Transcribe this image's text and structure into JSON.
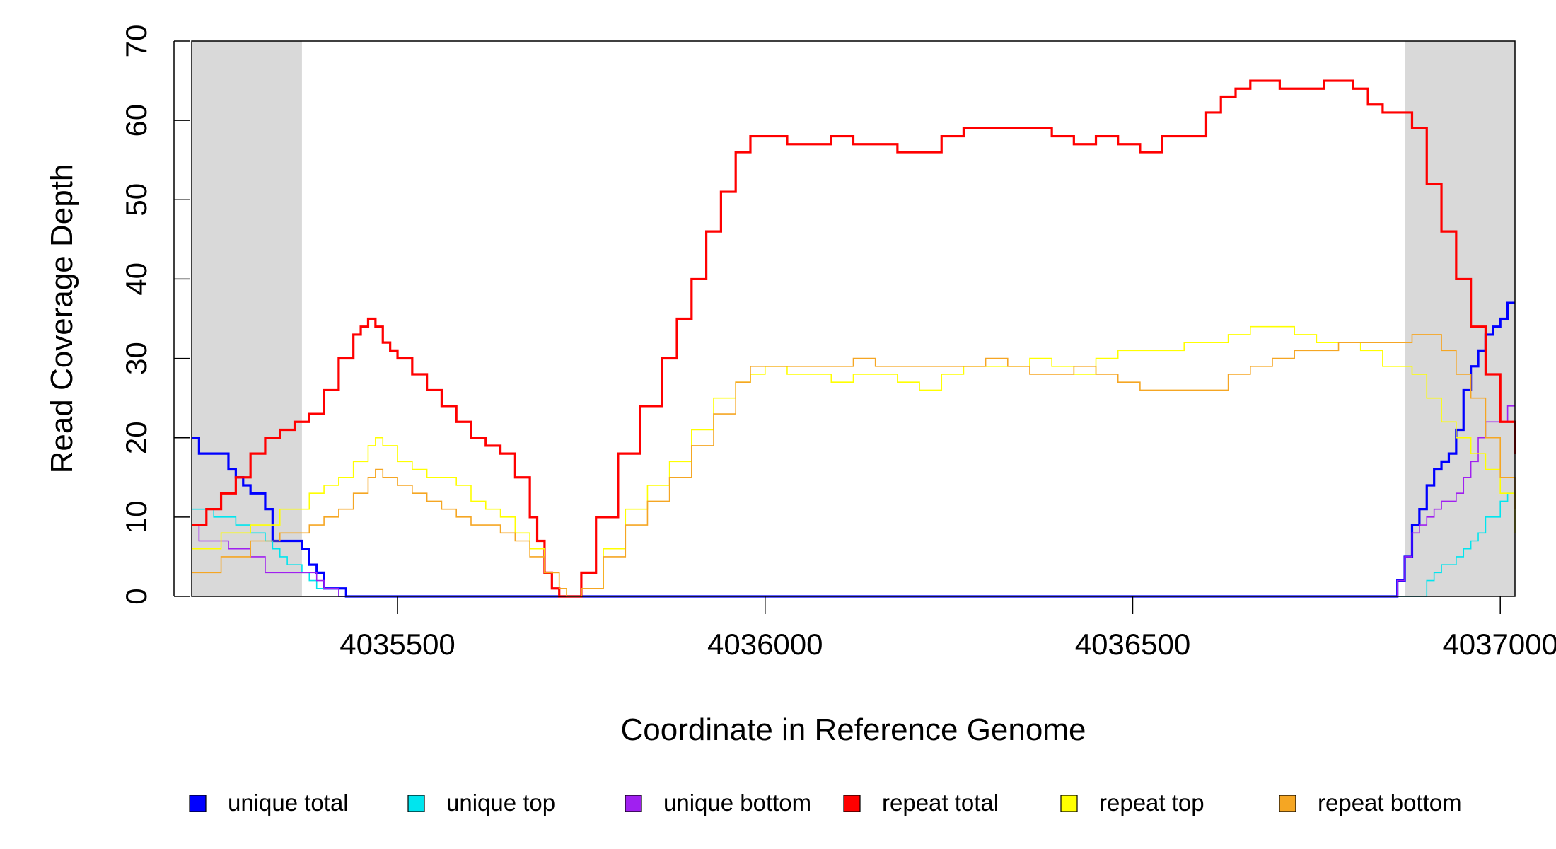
{
  "chart_data": {
    "type": "line",
    "title": "",
    "xlabel": "Coordinate in Reference Genome",
    "ylabel": "Read Coverage Depth",
    "xlim": [
      4035220,
      4037020
    ],
    "ylim": [
      0,
      70
    ],
    "grid": false,
    "legend_position": "bottom",
    "shaded_regions": [
      [
        4035220,
        4035370
      ],
      [
        4036870,
        4037020
      ]
    ],
    "shade_color": "#d9d9d9",
    "x_ticks": [
      {
        "value": 4035500,
        "label": "4035500"
      },
      {
        "value": 4036000,
        "label": "4036000"
      },
      {
        "value": 4036500,
        "label": "4036500"
      },
      {
        "value": 4037000,
        "label": "4037000"
      }
    ],
    "y_ticks": [
      {
        "value": 0,
        "label": "0"
      },
      {
        "value": 10,
        "label": "10"
      },
      {
        "value": 20,
        "label": "20"
      },
      {
        "value": 30,
        "label": "30"
      },
      {
        "value": 40,
        "label": "40"
      },
      {
        "value": 50,
        "label": "50"
      },
      {
        "value": 60,
        "label": "60"
      },
      {
        "value": 70,
        "label": "70"
      }
    ],
    "series": [
      {
        "name": "unique total",
        "color": "#0000ff",
        "width": "thick",
        "x": [
          4035220,
          4035230,
          4035260,
          4035270,
          4035280,
          4035290,
          4035300,
          4035310,
          4035320,
          4035330,
          4035350,
          4035360,
          4035370,
          4035380,
          4035390,
          4035400,
          4035410,
          4035430,
          4035440,
          4035500,
          4035740,
          4035780,
          4036000,
          4036500,
          4036850,
          4036860,
          4036870,
          4036880,
          4036890,
          4036900,
          4036910,
          4036920,
          4036930,
          4036940,
          4036950,
          4036960,
          4036970,
          4036980,
          4036990,
          4037000,
          4037010,
          4037020
        ],
        "y": [
          20,
          18,
          18,
          16,
          15,
          14,
          13,
          13,
          11,
          7,
          7,
          7,
          6,
          4,
          3,
          1,
          1,
          0,
          0,
          0,
          0,
          0,
          0,
          0,
          0,
          2,
          5,
          9,
          11,
          14,
          16,
          17,
          18,
          21,
          26,
          29,
          31,
          33,
          34,
          35,
          37,
          37
        ]
      },
      {
        "name": "unique top",
        "color": "#00e5ee",
        "width": "thin",
        "x": [
          4035220,
          4035240,
          4035250,
          4035270,
          4035280,
          4035290,
          4035300,
          4035310,
          4035320,
          4035330,
          4035340,
          4035350,
          4035360,
          4035370,
          4035380,
          4035390,
          4035400,
          4035420,
          4035500,
          4036000,
          4036500,
          4036860,
          4036870,
          4036880,
          4036890,
          4036900,
          4036910,
          4036920,
          4036930,
          4036940,
          4036950,
          4036960,
          4036970,
          4036980,
          4036990,
          4037000,
          4037010,
          4037020
        ],
        "y": [
          11,
          11,
          10,
          10,
          9,
          9,
          8,
          8,
          7,
          6,
          5,
          4,
          4,
          3,
          2,
          1,
          1,
          0,
          0,
          0,
          0,
          0,
          0,
          0,
          0,
          2,
          3,
          4,
          4,
          5,
          6,
          7,
          8,
          10,
          10,
          12,
          13,
          13
        ]
      },
      {
        "name": "unique bottom",
        "color": "#a020f0",
        "width": "thin",
        "x": [
          4035220,
          4035230,
          4035260,
          4035270,
          4035280,
          4035300,
          4035310,
          4035320,
          4035340,
          4035360,
          4035380,
          4035390,
          4035400,
          4035420,
          4035500,
          4036000,
          4036500,
          4036850,
          4036860,
          4036870,
          4036880,
          4036890,
          4036900,
          4036910,
          4036920,
          4036930,
          4036940,
          4036950,
          4036960,
          4036970,
          4036980,
          4036990,
          4037000,
          4037010,
          4037020
        ],
        "y": [
          9,
          7,
          7,
          6,
          6,
          5,
          5,
          3,
          3,
          3,
          3,
          2,
          1,
          0,
          0,
          0,
          0,
          0,
          2,
          5,
          8,
          9,
          10,
          11,
          12,
          12,
          13,
          15,
          17,
          20,
          22,
          22,
          22,
          24,
          24
        ]
      },
      {
        "name": "repeat total",
        "color": "#ff0000",
        "width": "thick",
        "x": [
          4035220,
          4035240,
          4035260,
          4035280,
          4035300,
          4035320,
          4035340,
          4035360,
          4035380,
          4035400,
          4035420,
          4035440,
          4035450,
          4035460,
          4035470,
          4035480,
          4035490,
          4035500,
          4035520,
          4035540,
          4035560,
          4035580,
          4035600,
          4035620,
          4035640,
          4035660,
          4035680,
          4035690,
          4035700,
          4035710,
          4035720,
          4035730,
          4035740,
          4035750,
          4035770,
          4035800,
          4035830,
          4035860,
          4035880,
          4035900,
          4035920,
          4035940,
          4035960,
          4035980,
          4036000,
          4036030,
          4036060,
          4036090,
          4036120,
          4036150,
          4036180,
          4036210,
          4036240,
          4036270,
          4036300,
          4036330,
          4036360,
          4036390,
          4036420,
          4036450,
          4036480,
          4036510,
          4036540,
          4036570,
          4036600,
          4036620,
          4036640,
          4036660,
          4036680,
          4036700,
          4036720,
          4036740,
          4036760,
          4036780,
          4036800,
          4036820,
          4036840,
          4036860,
          4036880,
          4036900,
          4036920,
          4036940,
          4036960,
          4036980,
          4037000,
          4037020
        ],
        "y": [
          9,
          11,
          13,
          15,
          18,
          20,
          21,
          22,
          23,
          26,
          30,
          33,
          34,
          35,
          34,
          32,
          31,
          30,
          28,
          26,
          24,
          22,
          20,
          19,
          18,
          15,
          10,
          7,
          3,
          1,
          0,
          0,
          0,
          3,
          10,
          18,
          24,
          30,
          35,
          40,
          46,
          51,
          56,
          58,
          58,
          57,
          57,
          58,
          57,
          57,
          56,
          56,
          58,
          59,
          59,
          59,
          59,
          58,
          57,
          58,
          57,
          56,
          58,
          58,
          61,
          63,
          64,
          65,
          65,
          64,
          64,
          64,
          65,
          65,
          64,
          62,
          61,
          61,
          59,
          52,
          46,
          40,
          34,
          28,
          22,
          18
        ]
      },
      {
        "name": "repeat top",
        "color": "#ffff00",
        "width": "thin",
        "x": [
          4035220,
          4035260,
          4035300,
          4035340,
          4035380,
          4035400,
          4035420,
          4035440,
          4035460,
          4035470,
          4035480,
          4035500,
          4035520,
          4035540,
          4035560,
          4035580,
          4035600,
          4035620,
          4035640,
          4035660,
          4035680,
          4035700,
          4035720,
          4035730,
          4035740,
          4035750,
          4035780,
          4035810,
          4035840,
          4035870,
          4035900,
          4035930,
          4035960,
          4035980,
          4036000,
          4036030,
          4036060,
          4036090,
          4036120,
          4036150,
          4036180,
          4036210,
          4036240,
          4036270,
          4036300,
          4036330,
          4036360,
          4036390,
          4036420,
          4036450,
          4036480,
          4036510,
          4036540,
          4036570,
          4036600,
          4036630,
          4036660,
          4036690,
          4036720,
          4036750,
          4036780,
          4036810,
          4036840,
          4036860,
          4036880,
          4036900,
          4036920,
          4036940,
          4036960,
          4036980,
          4037000,
          4037020
        ],
        "y": [
          6,
          8,
          9,
          11,
          13,
          14,
          15,
          17,
          19,
          20,
          19,
          17,
          16,
          15,
          15,
          14,
          12,
          11,
          10,
          8,
          6,
          3,
          1,
          0,
          0,
          1,
          6,
          11,
          14,
          17,
          21,
          25,
          27,
          28,
          29,
          28,
          28,
          27,
          28,
          28,
          27,
          26,
          28,
          29,
          29,
          29,
          30,
          29,
          28,
          30,
          31,
          31,
          31,
          32,
          32,
          33,
          34,
          34,
          33,
          32,
          32,
          31,
          29,
          29,
          28,
          25,
          22,
          20,
          18,
          16,
          13,
          8
        ]
      },
      {
        "name": "repeat bottom",
        "color": "#f5a623",
        "width": "thin",
        "x": [
          4035220,
          4035260,
          4035300,
          4035340,
          4035380,
          4035400,
          4035420,
          4035440,
          4035460,
          4035470,
          4035480,
          4035500,
          4035520,
          4035540,
          4035560,
          4035580,
          4035600,
          4035620,
          4035640,
          4035660,
          4035680,
          4035700,
          4035720,
          4035730,
          4035740,
          4035750,
          4035780,
          4035810,
          4035840,
          4035870,
          4035900,
          4035930,
          4035960,
          4035980,
          4036000,
          4036030,
          4036060,
          4036090,
          4036120,
          4036150,
          4036180,
          4036210,
          4036240,
          4036270,
          4036300,
          4036330,
          4036360,
          4036390,
          4036420,
          4036450,
          4036480,
          4036510,
          4036540,
          4036570,
          4036600,
          4036630,
          4036660,
          4036690,
          4036720,
          4036750,
          4036780,
          4036810,
          4036840,
          4036860,
          4036880,
          4036900,
          4036920,
          4036940,
          4036960,
          4036980,
          4037000,
          4037020
        ],
        "y": [
          3,
          5,
          7,
          8,
          9,
          10,
          11,
          13,
          15,
          16,
          15,
          14,
          13,
          12,
          11,
          10,
          9,
          9,
          8,
          7,
          5,
          3,
          1,
          0,
          0,
          1,
          5,
          9,
          12,
          15,
          19,
          23,
          27,
          29,
          29,
          29,
          29,
          29,
          30,
          29,
          29,
          29,
          29,
          29,
          30,
          29,
          28,
          28,
          29,
          28,
          27,
          26,
          26,
          26,
          26,
          28,
          29,
          30,
          31,
          31,
          32,
          32,
          32,
          32,
          33,
          33,
          31,
          28,
          25,
          20,
          15,
          11
        ]
      }
    ]
  }
}
